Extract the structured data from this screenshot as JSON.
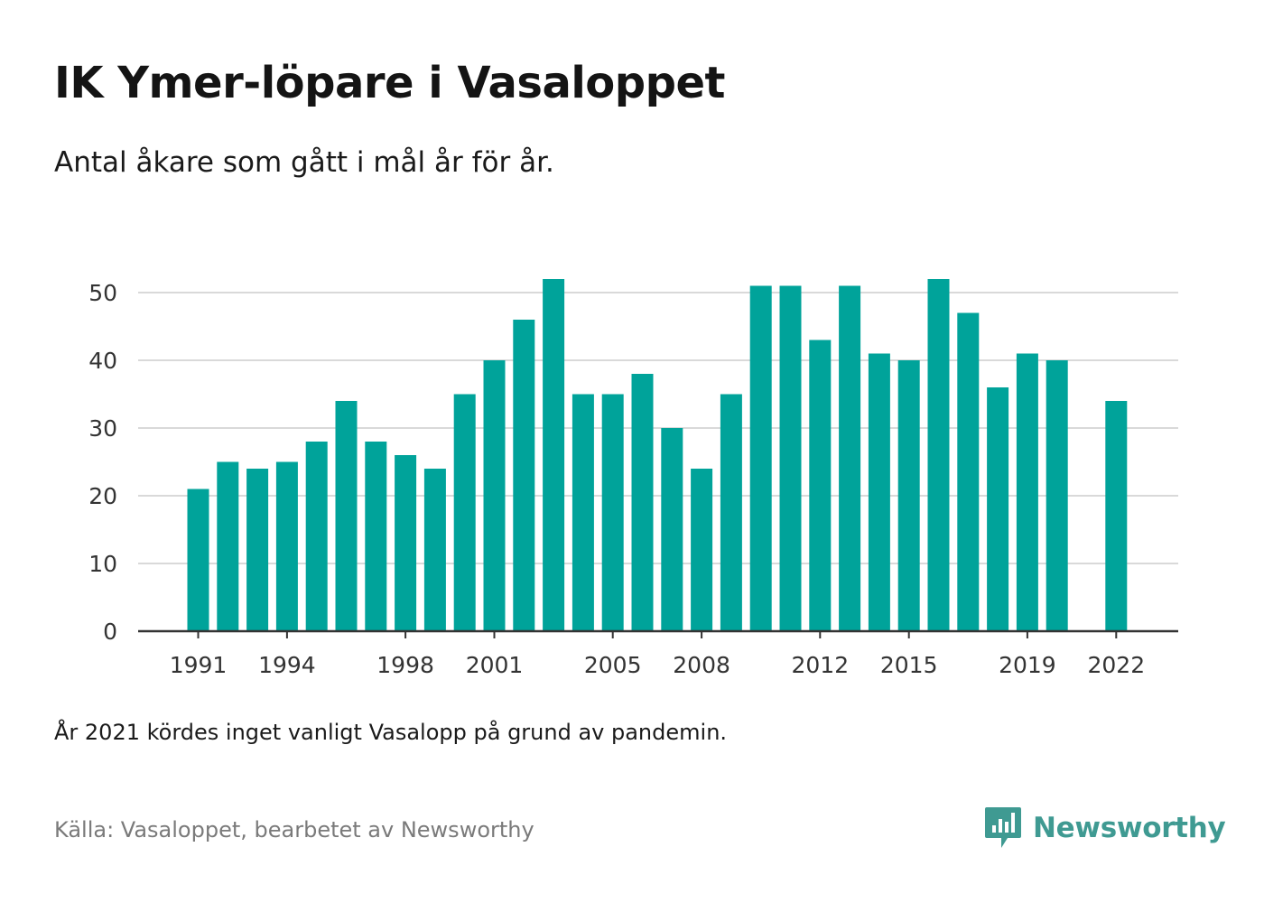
{
  "title": "IK Ymer-löpare i Vasaloppet",
  "subtitle": "Antal åkare som gått i mål år för år.",
  "note": "År 2021 kördes inget vanligt Vasalopp på grund av pandemin.",
  "source": "Källa: Vasaloppet, bearbetet av Newsworthy",
  "brand": {
    "name": "Newsworthy",
    "icon": "newsworthy-logo-icon",
    "color": "#3f9a92"
  },
  "colors": {
    "bar": "#00a39a",
    "grid": "#d9d9d9",
    "axis": "#333333",
    "tick_text": "#333333"
  },
  "chart_data": {
    "type": "bar",
    "x": [
      1991,
      1992,
      1993,
      1994,
      1995,
      1996,
      1997,
      1998,
      1999,
      2000,
      2001,
      2002,
      2003,
      2004,
      2005,
      2006,
      2007,
      2008,
      2009,
      2010,
      2011,
      2012,
      2013,
      2014,
      2015,
      2016,
      2017,
      2018,
      2019,
      2020,
      2021,
      2022
    ],
    "values": [
      21,
      25,
      24,
      25,
      28,
      34,
      28,
      26,
      24,
      35,
      40,
      46,
      52,
      35,
      35,
      38,
      30,
      24,
      35,
      51,
      51,
      43,
      51,
      41,
      40,
      52,
      47,
      36,
      41,
      40,
      null,
      34
    ],
    "x_tick_labels": [
      "1991",
      "1994",
      "1998",
      "2001",
      "2005",
      "2008",
      "2012",
      "2015",
      "2019",
      "2022"
    ],
    "y_ticks": [
      0,
      10,
      20,
      30,
      40,
      50
    ],
    "ylim": [
      0,
      55
    ],
    "grid": true,
    "title": "IK Ymer-löpare i Vasaloppet",
    "subtitle": "Antal åkare som gått i mål år för år.",
    "xlabel": "",
    "ylabel": ""
  }
}
